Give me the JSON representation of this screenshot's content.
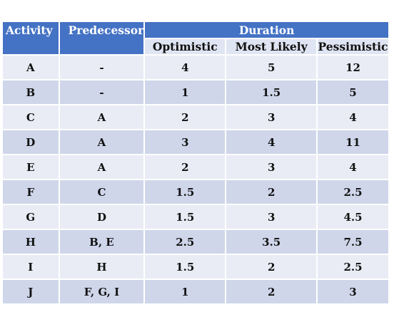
{
  "headers": {
    "activity": "Activity",
    "predecessor": "Predecessor",
    "duration": "Duration",
    "optimistic": "Optimistic",
    "most_likely": "Most Likely",
    "pessimistic": "Pessimistic"
  },
  "rows": [
    {
      "activity": "A",
      "predecessor": "-",
      "optimistic": "4",
      "most_likely": "5",
      "pessimistic": "12"
    },
    {
      "activity": "B",
      "predecessor": "-",
      "optimistic": "1",
      "most_likely": "1.5",
      "pessimistic": "5"
    },
    {
      "activity": "C",
      "predecessor": "A",
      "optimistic": "2",
      "most_likely": "3",
      "pessimistic": "4"
    },
    {
      "activity": "D",
      "predecessor": "A",
      "optimistic": "3",
      "most_likely": "4",
      "pessimistic": "11"
    },
    {
      "activity": "E",
      "predecessor": "A",
      "optimistic": "2",
      "most_likely": "3",
      "pessimistic": "4"
    },
    {
      "activity": "F",
      "predecessor": "C",
      "optimistic": "1.5",
      "most_likely": "2",
      "pessimistic": "2.5"
    },
    {
      "activity": "G",
      "predecessor": "D",
      "optimistic": "1.5",
      "most_likely": "3",
      "pessimistic": "4.5"
    },
    {
      "activity": "H",
      "predecessor": "B, E",
      "optimistic": "2.5",
      "most_likely": "3.5",
      "pessimistic": "7.5"
    },
    {
      "activity": "I",
      "predecessor": "H",
      "optimistic": "1.5",
      "most_likely": "2",
      "pessimistic": "2.5"
    },
    {
      "activity": "J",
      "predecessor": "F, G, I",
      "optimistic": "1",
      "most_likely": "2",
      "pessimistic": "3"
    }
  ]
}
